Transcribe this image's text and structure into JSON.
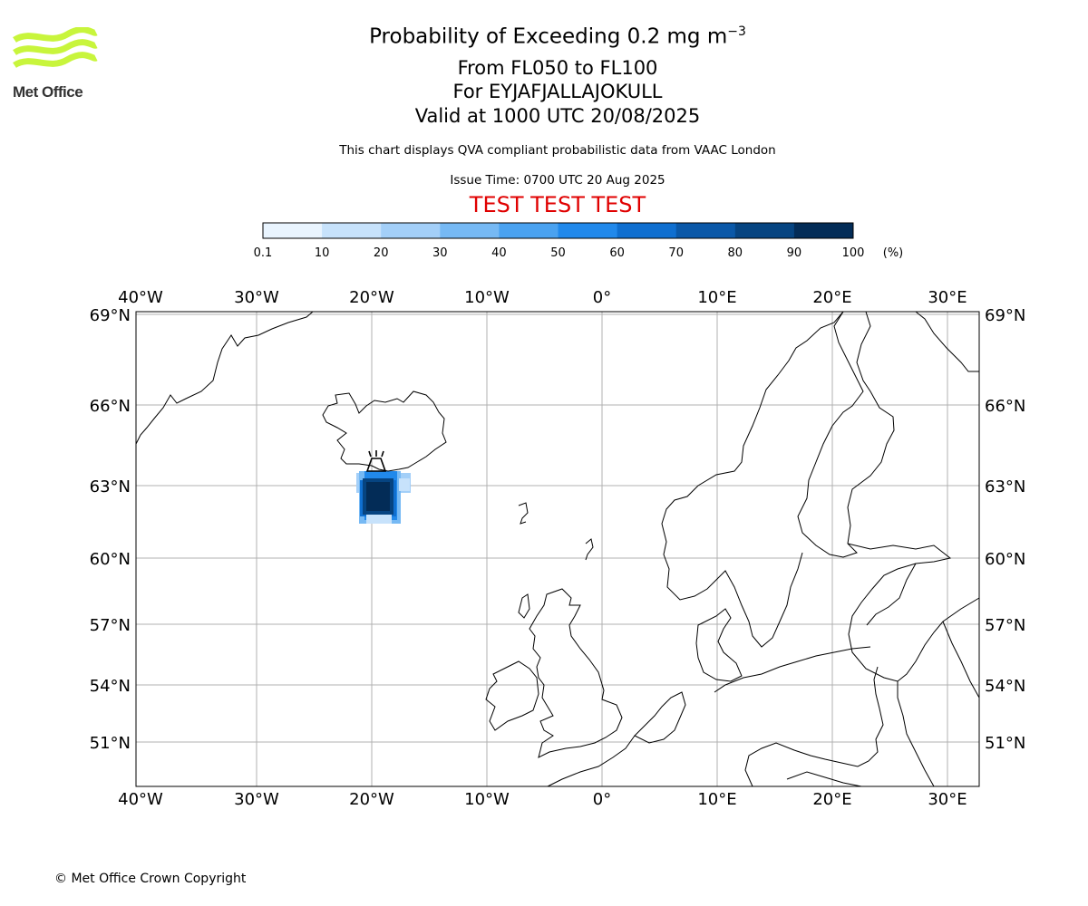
{
  "logo": {
    "text": "Met Office",
    "color": "#c8f53c"
  },
  "header": {
    "title_main": "Probability of Exceeding 0.2 mg m",
    "title_exp": "−3",
    "level_range": "From FL050 to FL100",
    "volcano": "For EYJAFJALLAJOKULL",
    "valid_time": "Valid at 1000 UTC 20/08/2025",
    "subtitle": "This chart displays QVA compliant probabilistic data from VAAC London",
    "issue_time": "Issue Time: 0700 UTC 20 Aug 2025",
    "test_banner": "TEST TEST TEST"
  },
  "colorbar": {
    "ticks": [
      "0.1",
      "10",
      "20",
      "30",
      "40",
      "50",
      "60",
      "70",
      "80",
      "90",
      "100"
    ],
    "unit": "(%)",
    "colors": [
      "#e9f4fe",
      "#c7e2fb",
      "#a3cff8",
      "#76b9f4",
      "#4aa2f0",
      "#2189eb",
      "#0f6fd0",
      "#0a58a8",
      "#064481",
      "#032c57"
    ]
  },
  "map": {
    "lon_labels": [
      "40°W",
      "30°W",
      "20°W",
      "10°W",
      "0°",
      "10°E",
      "20°E",
      "30°E"
    ],
    "lat_labels": [
      "69°N",
      "66°N",
      "63°N",
      "60°N",
      "57°N",
      "54°N",
      "51°N"
    ],
    "gridline_color": "#b0b0b0",
    "source_marker": "volcano-icon"
  },
  "footer": {
    "copyright": "© Met Office Crown Copyright"
  }
}
